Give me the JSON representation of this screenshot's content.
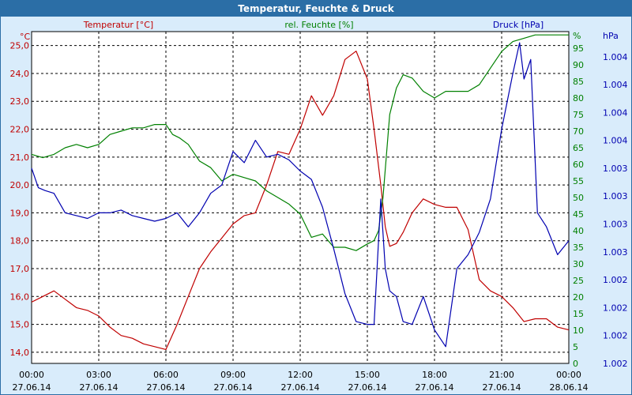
{
  "window": {
    "title": "Temperatur, Feuchte & Druck"
  },
  "chart_data": {
    "type": "line",
    "x_labels": [
      {
        "time": "00:00",
        "date": "27.06.14"
      },
      {
        "time": "03:00",
        "date": "27.06.14"
      },
      {
        "time": "06:00",
        "date": "27.06.14"
      },
      {
        "time": "09:00",
        "date": "27.06.14"
      },
      {
        "time": "12:00",
        "date": "27.06.14"
      },
      {
        "time": "15:00",
        "date": "27.06.14"
      },
      {
        "time": "18:00",
        "date": "27.06.14"
      },
      {
        "time": "21:00",
        "date": "27.06.14"
      },
      {
        "time": "00:00",
        "date": "28.06.14"
      }
    ],
    "xlim": [
      0,
      24
    ],
    "grid": true,
    "axes": {
      "temperature": {
        "unit": "°C",
        "ylim": [
          13.6,
          25.5
        ],
        "ticks": [
          "14,0",
          "15,0",
          "16,0",
          "17,0",
          "18,0",
          "19,0",
          "20,0",
          "21,0",
          "22,0",
          "23,0",
          "24,0",
          "25,0"
        ],
        "tick_values": [
          14,
          15,
          16,
          17,
          18,
          19,
          20,
          21,
          22,
          23,
          24,
          25
        ],
        "color": "#c00000"
      },
      "humidity": {
        "unit": "%",
        "ylim": [
          0,
          100
        ],
        "ticks": [
          "0",
          "5",
          "10",
          "15",
          "20",
          "25",
          "30",
          "35",
          "40",
          "45",
          "50",
          "55",
          "60",
          "65",
          "70",
          "75",
          "80",
          "85",
          "90",
          "95"
        ],
        "tick_values": [
          0,
          5,
          10,
          15,
          20,
          25,
          30,
          35,
          40,
          45,
          50,
          55,
          60,
          65,
          70,
          75,
          80,
          85,
          90,
          95
        ],
        "color": "#008000"
      },
      "pressure": {
        "unit": "hPa",
        "ticks": [
          "1.002",
          "1.002",
          "1.002",
          "1.002",
          "1.003",
          "1.003",
          "1.003",
          "1.003",
          "1.004",
          "1.004",
          "1.004",
          "1.004"
        ],
        "tick_values": [
          13.6,
          14.6,
          15.6,
          16.6,
          17.6,
          18.6,
          19.6,
          20.6,
          21.6,
          22.6,
          23.6,
          24.6
        ],
        "color": "#0000b0"
      }
    },
    "series": [
      {
        "name": "Temperatur [°C]",
        "axis": "temperature",
        "color": "#c00000",
        "x": [
          0,
          0.5,
          1,
          1.5,
          2,
          2.5,
          3,
          3.5,
          4,
          4.5,
          5,
          5.5,
          6,
          6.5,
          7,
          7.5,
          8,
          8.5,
          9,
          9.5,
          10,
          10.5,
          11,
          11.5,
          12,
          12.5,
          13,
          13.5,
          14,
          14.5,
          15,
          15.3,
          15.6,
          15.8,
          16,
          16.3,
          16.6,
          17,
          17.5,
          18,
          18.5,
          19,
          19.5,
          20,
          20.5,
          21,
          21.5,
          22,
          22.5,
          23,
          23.5,
          24
        ],
        "y": [
          15.8,
          16.0,
          16.2,
          15.9,
          15.6,
          15.5,
          15.3,
          14.9,
          14.6,
          14.5,
          14.3,
          14.2,
          14.1,
          15.0,
          16.0,
          17.0,
          17.6,
          18.1,
          18.6,
          18.9,
          19.0,
          20.0,
          21.2,
          21.1,
          22.0,
          23.2,
          22.5,
          23.2,
          24.5,
          24.8,
          23.8,
          22.0,
          20.0,
          18.5,
          17.8,
          17.9,
          18.3,
          19.0,
          19.5,
          19.3,
          19.2,
          19.2,
          18.4,
          16.6,
          16.2,
          16.0,
          15.6,
          15.1,
          15.2,
          15.2,
          14.9,
          14.8
        ]
      },
      {
        "name": "rel. Feuchte [%]",
        "axis": "humidity",
        "color": "#008000",
        "x": [
          0,
          0.5,
          1,
          1.5,
          2,
          2.5,
          3,
          3.5,
          4,
          4.5,
          5,
          5.5,
          6,
          6.3,
          6.6,
          7,
          7.5,
          8,
          8.5,
          9,
          9.5,
          10,
          10.5,
          11,
          11.5,
          12,
          12.5,
          13,
          13.5,
          14,
          14.5,
          15,
          15.3,
          15.5,
          15.7,
          16,
          16.3,
          16.6,
          17,
          17.5,
          18,
          18.5,
          19,
          19.5,
          20,
          20.5,
          21,
          21.5,
          22,
          22.5,
          23,
          23.5,
          24
        ],
        "y": [
          63,
          62,
          63,
          65,
          66,
          65,
          66,
          69,
          70,
          71,
          71,
          72,
          72,
          69,
          68,
          66,
          61,
          59,
          55,
          57,
          56,
          55,
          52,
          50,
          48,
          45,
          38,
          39,
          35,
          35,
          34,
          36,
          37,
          40,
          50,
          75,
          83,
          87,
          86,
          82,
          80,
          82,
          82,
          82,
          84,
          89,
          94,
          97,
          98,
          99,
          99,
          99,
          99
        ]
      },
      {
        "name": "Druck [hPa]",
        "axis": "pressure",
        "color": "#0000b0",
        "x": [
          0,
          0.3,
          0.6,
          1,
          1.5,
          2,
          2.5,
          3,
          3.5,
          4,
          4.5,
          5,
          5.5,
          6,
          6.5,
          7,
          7.5,
          8,
          8.5,
          9,
          9.5,
          10,
          10.5,
          11,
          11.5,
          12,
          12.5,
          13,
          13.5,
          14,
          14.5,
          15,
          15.3,
          15.6,
          15.8,
          16,
          16.3,
          16.6,
          17,
          17.5,
          18,
          18.5,
          19,
          19.5,
          20,
          20.5,
          21,
          21.5,
          21.8,
          22,
          22.3,
          22.6,
          23,
          23.5,
          24
        ],
        "y": [
          20.6,
          19.9,
          19.8,
          19.7,
          19.0,
          18.9,
          18.8,
          19.0,
          19.0,
          19.1,
          18.9,
          18.8,
          18.7,
          18.8,
          19.0,
          18.5,
          19.0,
          19.7,
          20.0,
          21.2,
          20.8,
          21.6,
          21.0,
          21.1,
          20.9,
          20.5,
          20.2,
          19.2,
          17.7,
          16.1,
          15.1,
          15.0,
          15.0,
          19.5,
          17.0,
          16.2,
          16.0,
          15.1,
          15.0,
          16.0,
          14.8,
          14.2,
          17.0,
          17.5,
          18.3,
          19.5,
          22.0,
          24.0,
          25.1,
          23.8,
          24.5,
          19.0,
          18.5,
          17.5,
          18.0
        ]
      }
    ]
  }
}
